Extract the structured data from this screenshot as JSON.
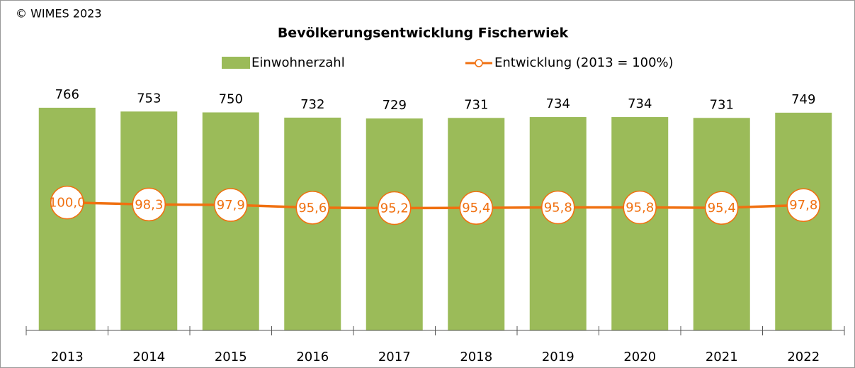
{
  "copyright": "© WIMES 2023",
  "chart_data": {
    "type": "bar-line",
    "title": "Bevölkerungsentwicklung Fischerwiek",
    "categories": [
      "2013",
      "2014",
      "2015",
      "2016",
      "2017",
      "2018",
      "2019",
      "2020",
      "2021",
      "2022"
    ],
    "series": [
      {
        "name": "Einwohnerzahl",
        "type": "bar",
        "color": "#9bbb59",
        "values": [
          766,
          753,
          750,
          732,
          729,
          731,
          734,
          734,
          731,
          749
        ]
      },
      {
        "name": "Entwicklung (2013 = 100%)",
        "type": "line",
        "axis": "y2",
        "color": "#f07010",
        "values": [
          100.0,
          98.3,
          97.9,
          95.6,
          95.2,
          95.4,
          95.8,
          95.8,
          95.4,
          97.8
        ],
        "value_labels": [
          "100,0",
          "98,3",
          "97,9",
          "95,6",
          "95,2",
          "95,4",
          "95,8",
          "95,8",
          "95,4",
          "97,8"
        ]
      }
    ],
    "ylim": [
      0,
      800
    ],
    "y2lim": [
      -10,
      190
    ],
    "grid": false,
    "legend": "top"
  }
}
